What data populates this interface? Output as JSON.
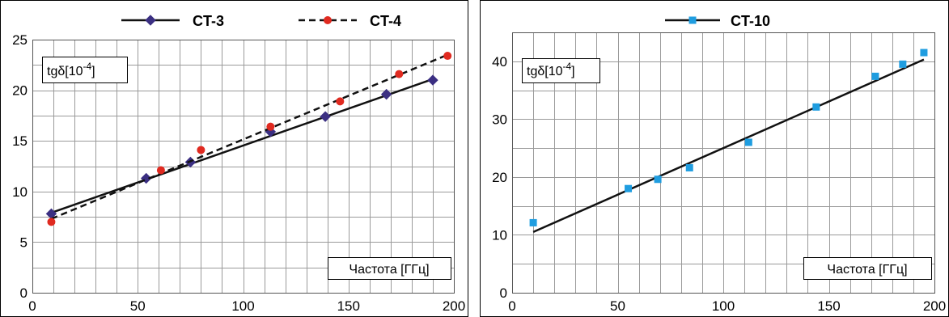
{
  "chart_data": [
    {
      "type": "scatter",
      "title": "",
      "xlabel": "Частота [ГГц]",
      "ylabel": "tgδ[10⁻⁴]",
      "ylabel_base": "tgδ[10",
      "ylabel_exp": "-4",
      "ylabel_close": "]",
      "xlim": [
        0,
        200
      ],
      "ylim": [
        0,
        25
      ],
      "xticks": [
        0,
        50,
        100,
        150,
        200
      ],
      "yticks": [
        0,
        5,
        10,
        15,
        20,
        25
      ],
      "grid": true,
      "legend_position": "top",
      "series": [
        {
          "name": "CT-3",
          "marker": "diamond",
          "color": "#3b2f82",
          "line_style": "solid",
          "x": [
            9,
            54,
            75,
            113,
            139,
            168,
            190
          ],
          "y": [
            7.8,
            11.3,
            12.9,
            15.9,
            17.4,
            19.6,
            21.0
          ],
          "fit": [
            [
              9,
              7.9
            ],
            [
              190,
              21.1
            ]
          ]
        },
        {
          "name": "CT-4",
          "marker": "circle",
          "color": "#e02a20",
          "line_style": "dashed",
          "x": [
            9,
            61,
            80,
            113,
            146,
            174,
            197
          ],
          "y": [
            7.0,
            12.1,
            14.1,
            16.4,
            18.9,
            21.6,
            23.4
          ],
          "fit": [
            [
              9,
              7.3
            ],
            [
              197,
              23.5
            ]
          ]
        }
      ]
    },
    {
      "type": "scatter",
      "title": "",
      "xlabel": "Частота [ГГц]",
      "ylabel": "tgδ[10⁻⁴]",
      "ylabel_base": "tgδ[10",
      "ylabel_exp": "-4",
      "ylabel_close": "]",
      "xlim": [
        0,
        200
      ],
      "ylim": [
        0,
        45
      ],
      "xticks": [
        0,
        50,
        100,
        150,
        200
      ],
      "yticks": [
        0,
        10,
        20,
        30,
        40
      ],
      "grid": true,
      "legend_position": "top",
      "series": [
        {
          "name": "CT-10",
          "marker": "square",
          "color": "#1f9de0",
          "line_style": "solid",
          "x": [
            10,
            55,
            69,
            84,
            112,
            144,
            172,
            185,
            195
          ],
          "y": [
            12.1,
            18.0,
            19.6,
            21.6,
            26.0,
            32.1,
            37.4,
            39.5,
            41.5
          ],
          "fit": [
            [
              10,
              10.5
            ],
            [
              195,
              40.3
            ]
          ]
        }
      ]
    }
  ]
}
